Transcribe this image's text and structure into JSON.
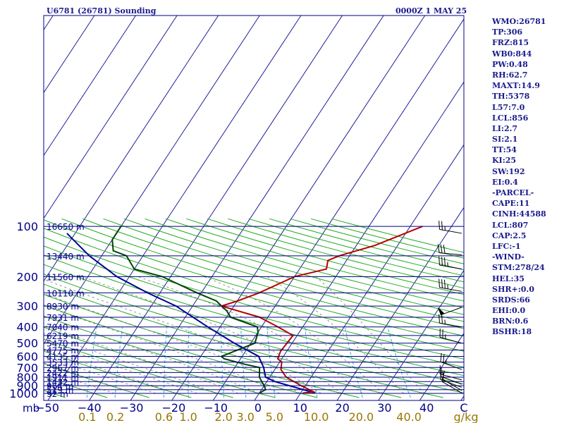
{
  "header": {
    "station": "U6781 (26781) Sounding",
    "time": "0000Z  1 MAY 25"
  },
  "colors": {
    "frame": "#000088",
    "isobar": "#000088",
    "isotherm": "#1f1f9a",
    "dry_adiabat": "#22aa22",
    "moist_adiabat": "#777777",
    "mixing_ratio": "#33aadd",
    "temperature": "#bb0000",
    "dewpoint": "#004400",
    "parcel": "#000099",
    "label_blue": "#000088",
    "label_olive": "#997700",
    "wind_barb": "#000000"
  },
  "indices": [
    "WMO:26781",
    "TP:306",
    "FRZ:815",
    "WB0:844",
    "PW:0.48",
    "RH:62.7",
    "MAXT:14.9",
    "TH:5378",
    "L57:7.0",
    "LCL:856",
    "LI:2.7",
    "SI:2.1",
    "TT:54",
    "KI:25",
    "SW:192",
    "EI:0.4",
    "-PARCEL-",
    "CAPE:11",
    "CINH:44588",
    "LCL:807",
    "CAP:2.5",
    "LFC:-1",
    "-WIND-",
    "STM:278/24",
    "HEL:35",
    "SHR+:0.0",
    "SRDS:66",
    "EHI:0.0",
    "BRN:0.6",
    "BSHR:18"
  ],
  "chart_data": {
    "type": "skew-t log-p",
    "x_unit_label": "C",
    "mixing_ratio_unit": "g/kg",
    "pressure_corner_label": "mb",
    "temperature_ticks": [
      "−50",
      "−40",
      "−30",
      "−20",
      "−10",
      "0",
      "10",
      "20",
      "30",
      "40"
    ],
    "mixing_ratio_ticks": [
      "0.1",
      "0.2",
      "0.6",
      "1.0",
      "2.0",
      "3.0",
      "5.0",
      "10.0",
      "20.0",
      "40.0"
    ],
    "pressure_levels": [
      {
        "p": 100,
        "label": "100",
        "height": "16650 m"
      },
      {
        "p": 150,
        "label": "",
        "height": "13440 m"
      },
      {
        "p": 200,
        "label": "200",
        "height": "11560 m"
      },
      {
        "p": 250,
        "label": "",
        "height": "10110 m"
      },
      {
        "p": 300,
        "label": "300",
        "height": "8930 m"
      },
      {
        "p": 350,
        "label": "",
        "height": "7931 m"
      },
      {
        "p": 400,
        "label": "400",
        "height": "7040 m"
      },
      {
        "p": 450,
        "label": "",
        "height": "6219 m"
      },
      {
        "p": 500,
        "label": "500",
        "height": "5470 m"
      },
      {
        "p": 550,
        "label": "",
        "height": "4775 m"
      },
      {
        "p": 600,
        "label": "600",
        "height": "4135 m"
      },
      {
        "p": 650,
        "label": "",
        "height": "3533 m"
      },
      {
        "p": 700,
        "label": "700",
        "height": "2967 m"
      },
      {
        "p": 750,
        "label": "",
        "height": "2422 m"
      },
      {
        "p": 800,
        "label": "800",
        "height": "1911 m"
      },
      {
        "p": 850,
        "label": "",
        "height": "1432 m"
      },
      {
        "p": 900,
        "label": "900",
        "height": "964 m"
      },
      {
        "p": 950,
        "label": "",
        "height": "519 m"
      },
      {
        "p": 1000,
        "label": "1000",
        "height": "92 m"
      }
    ],
    "temperature_profile": [
      [
        995,
        10.5
      ],
      [
        980,
        13.0
      ],
      [
        900,
        9.0
      ],
      [
        800,
        4.0
      ],
      [
        720,
        1.5
      ],
      [
        650,
        0.5
      ],
      [
        620,
        -1.0
      ],
      [
        560,
        -1.5
      ],
      [
        450,
        -1.0
      ],
      [
        400,
        -6.0
      ],
      [
        350,
        -12.0
      ],
      [
        300,
        -23.0
      ],
      [
        280,
        -20.0
      ],
      [
        250,
        -16.0
      ],
      [
        200,
        -10.0
      ],
      [
        180,
        -3.5
      ],
      [
        160,
        -4.5
      ],
      [
        150,
        -2.5
      ],
      [
        130,
        4.5
      ],
      [
        100,
        13.0
      ]
    ],
    "dewpoint_profile": [
      [
        995,
        0.0
      ],
      [
        950,
        1.0
      ],
      [
        900,
        0.0
      ],
      [
        800,
        -2.5
      ],
      [
        700,
        -4.0
      ],
      [
        670,
        -8.0
      ],
      [
        620,
        -14.0
      ],
      [
        600,
        -15.0
      ],
      [
        500,
        -9.0
      ],
      [
        430,
        -10.0
      ],
      [
        400,
        -11.0
      ],
      [
        350,
        -19.0
      ],
      [
        320,
        -21.0
      ],
      [
        300,
        -23.0
      ],
      [
        280,
        -25.0
      ],
      [
        250,
        -31.0
      ],
      [
        200,
        -42.0
      ],
      [
        180,
        -50.0
      ],
      [
        150,
        -54.0
      ],
      [
        140,
        -58.0
      ],
      [
        120,
        -60.0
      ],
      [
        100,
        -60.0
      ]
    ],
    "parcel_profile": [
      [
        995,
        13.5
      ],
      [
        850,
        2.0
      ],
      [
        800,
        -1.0
      ],
      [
        700,
        -3.0
      ],
      [
        600,
        -6.0
      ],
      [
        500,
        -14.0
      ],
      [
        400,
        -23.0
      ],
      [
        300,
        -34.0
      ],
      [
        250,
        -43.0
      ],
      [
        200,
        -53.0
      ],
      [
        150,
        -63.0
      ],
      [
        110,
        -72.0
      ]
    ],
    "wind_barbs": [
      {
        "p": 110,
        "dir": 280,
        "kt": 25
      },
      {
        "p": 148,
        "dir": 275,
        "kt": 30
      },
      {
        "p": 180,
        "dir": 280,
        "kt": 35
      },
      {
        "p": 245,
        "dir": 280,
        "kt": 35
      },
      {
        "p": 305,
        "dir": 250,
        "kt": 50
      },
      {
        "p": 400,
        "dir": 280,
        "kt": 25
      },
      {
        "p": 500,
        "dir": 285,
        "kt": 25
      },
      {
        "p": 720,
        "dir": 290,
        "kt": 25
      },
      {
        "p": 830,
        "dir": 285,
        "kt": 15
      },
      {
        "p": 880,
        "dir": 290,
        "kt": 15
      },
      {
        "p": 920,
        "dir": 290,
        "kt": 10
      },
      {
        "p": 960,
        "dir": 300,
        "kt": 10
      },
      {
        "p": 995,
        "dir": 300,
        "kt": 5
      }
    ]
  }
}
